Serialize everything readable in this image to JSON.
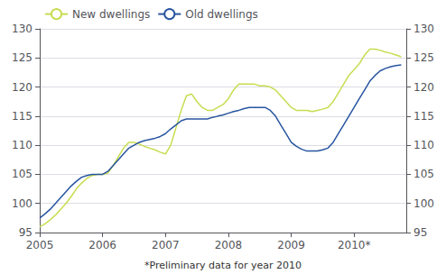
{
  "chart_data": {
    "type": "line",
    "annotation": "*Preliminary data for year 2010",
    "x": [
      2005.0,
      2005.083,
      2005.167,
      2005.25,
      2005.333,
      2005.417,
      2005.5,
      2005.583,
      2005.667,
      2005.75,
      2005.833,
      2005.917,
      2006.0,
      2006.083,
      2006.167,
      2006.25,
      2006.333,
      2006.417,
      2006.5,
      2006.583,
      2006.667,
      2006.75,
      2006.833,
      2006.917,
      2007.0,
      2007.083,
      2007.167,
      2007.25,
      2007.333,
      2007.417,
      2007.5,
      2007.583,
      2007.667,
      2007.75,
      2007.833,
      2007.917,
      2008.0,
      2008.083,
      2008.167,
      2008.25,
      2008.333,
      2008.417,
      2008.5,
      2008.583,
      2008.667,
      2008.75,
      2008.833,
      2008.917,
      2009.0,
      2009.083,
      2009.167,
      2009.25,
      2009.333,
      2009.417,
      2009.5,
      2009.583,
      2009.667,
      2009.75,
      2009.833,
      2009.917,
      2010.0,
      2010.083,
      2010.167,
      2010.25,
      2010.333,
      2010.417,
      2010.5,
      2010.583,
      2010.667,
      2010.75
    ],
    "series": [
      {
        "name": "New dwellings",
        "color": "#c8dc50",
        "values": [
          96.0,
          96.5,
          97.2,
          98.0,
          99.0,
          100.0,
          101.2,
          102.5,
          103.5,
          104.3,
          104.8,
          105.0,
          105.0,
          105.2,
          106.5,
          108.0,
          109.5,
          110.5,
          110.5,
          110.2,
          109.8,
          109.5,
          109.2,
          108.8,
          108.5,
          110.0,
          113.0,
          116.0,
          118.5,
          118.8,
          117.5,
          116.5,
          116.0,
          116.0,
          116.5,
          117.0,
          118.0,
          119.5,
          120.5,
          120.5,
          120.5,
          120.5,
          120.2,
          120.2,
          120.0,
          119.5,
          118.5,
          117.5,
          116.5,
          116.0,
          116.0,
          116.0,
          115.8,
          116.0,
          116.2,
          116.5,
          117.5,
          119.0,
          120.5,
          122.0,
          123.0,
          124.0,
          125.5,
          126.5,
          126.5,
          126.3,
          126.0,
          125.8,
          125.5,
          125.2
        ]
      },
      {
        "name": "Old dwellings",
        "color": "#2855a0",
        "values": [
          97.5,
          98.2,
          99.0,
          100.0,
          101.0,
          102.0,
          103.0,
          103.8,
          104.5,
          104.8,
          105.0,
          105.0,
          105.0,
          105.5,
          106.5,
          107.5,
          108.5,
          109.5,
          110.0,
          110.5,
          110.8,
          111.0,
          111.2,
          111.5,
          112.0,
          112.8,
          113.5,
          114.2,
          114.5,
          114.5,
          114.5,
          114.5,
          114.5,
          114.8,
          115.0,
          115.2,
          115.5,
          115.8,
          116.0,
          116.3,
          116.5,
          116.5,
          116.5,
          116.5,
          116.0,
          115.0,
          113.5,
          112.0,
          110.5,
          109.8,
          109.3,
          109.0,
          109.0,
          109.0,
          109.2,
          109.5,
          110.5,
          112.0,
          113.5,
          115.0,
          116.5,
          118.0,
          119.5,
          121.0,
          122.0,
          122.8,
          123.2,
          123.5,
          123.7,
          123.8
        ]
      }
    ],
    "xlim": [
      2005.0,
      2010.83
    ],
    "xticks": [
      2005,
      2006,
      2007,
      2008,
      2009,
      {
        "value": 2010,
        "label": "2010*"
      }
    ],
    "ylim": [
      95,
      130
    ],
    "yticks": [
      95,
      100,
      105,
      110,
      115,
      120,
      125,
      130
    ],
    "y2lim": [
      95,
      130
    ],
    "y2ticks": [
      95,
      100,
      105,
      110,
      115,
      120,
      125,
      130
    ],
    "grid": true,
    "legend": "upper left"
  }
}
